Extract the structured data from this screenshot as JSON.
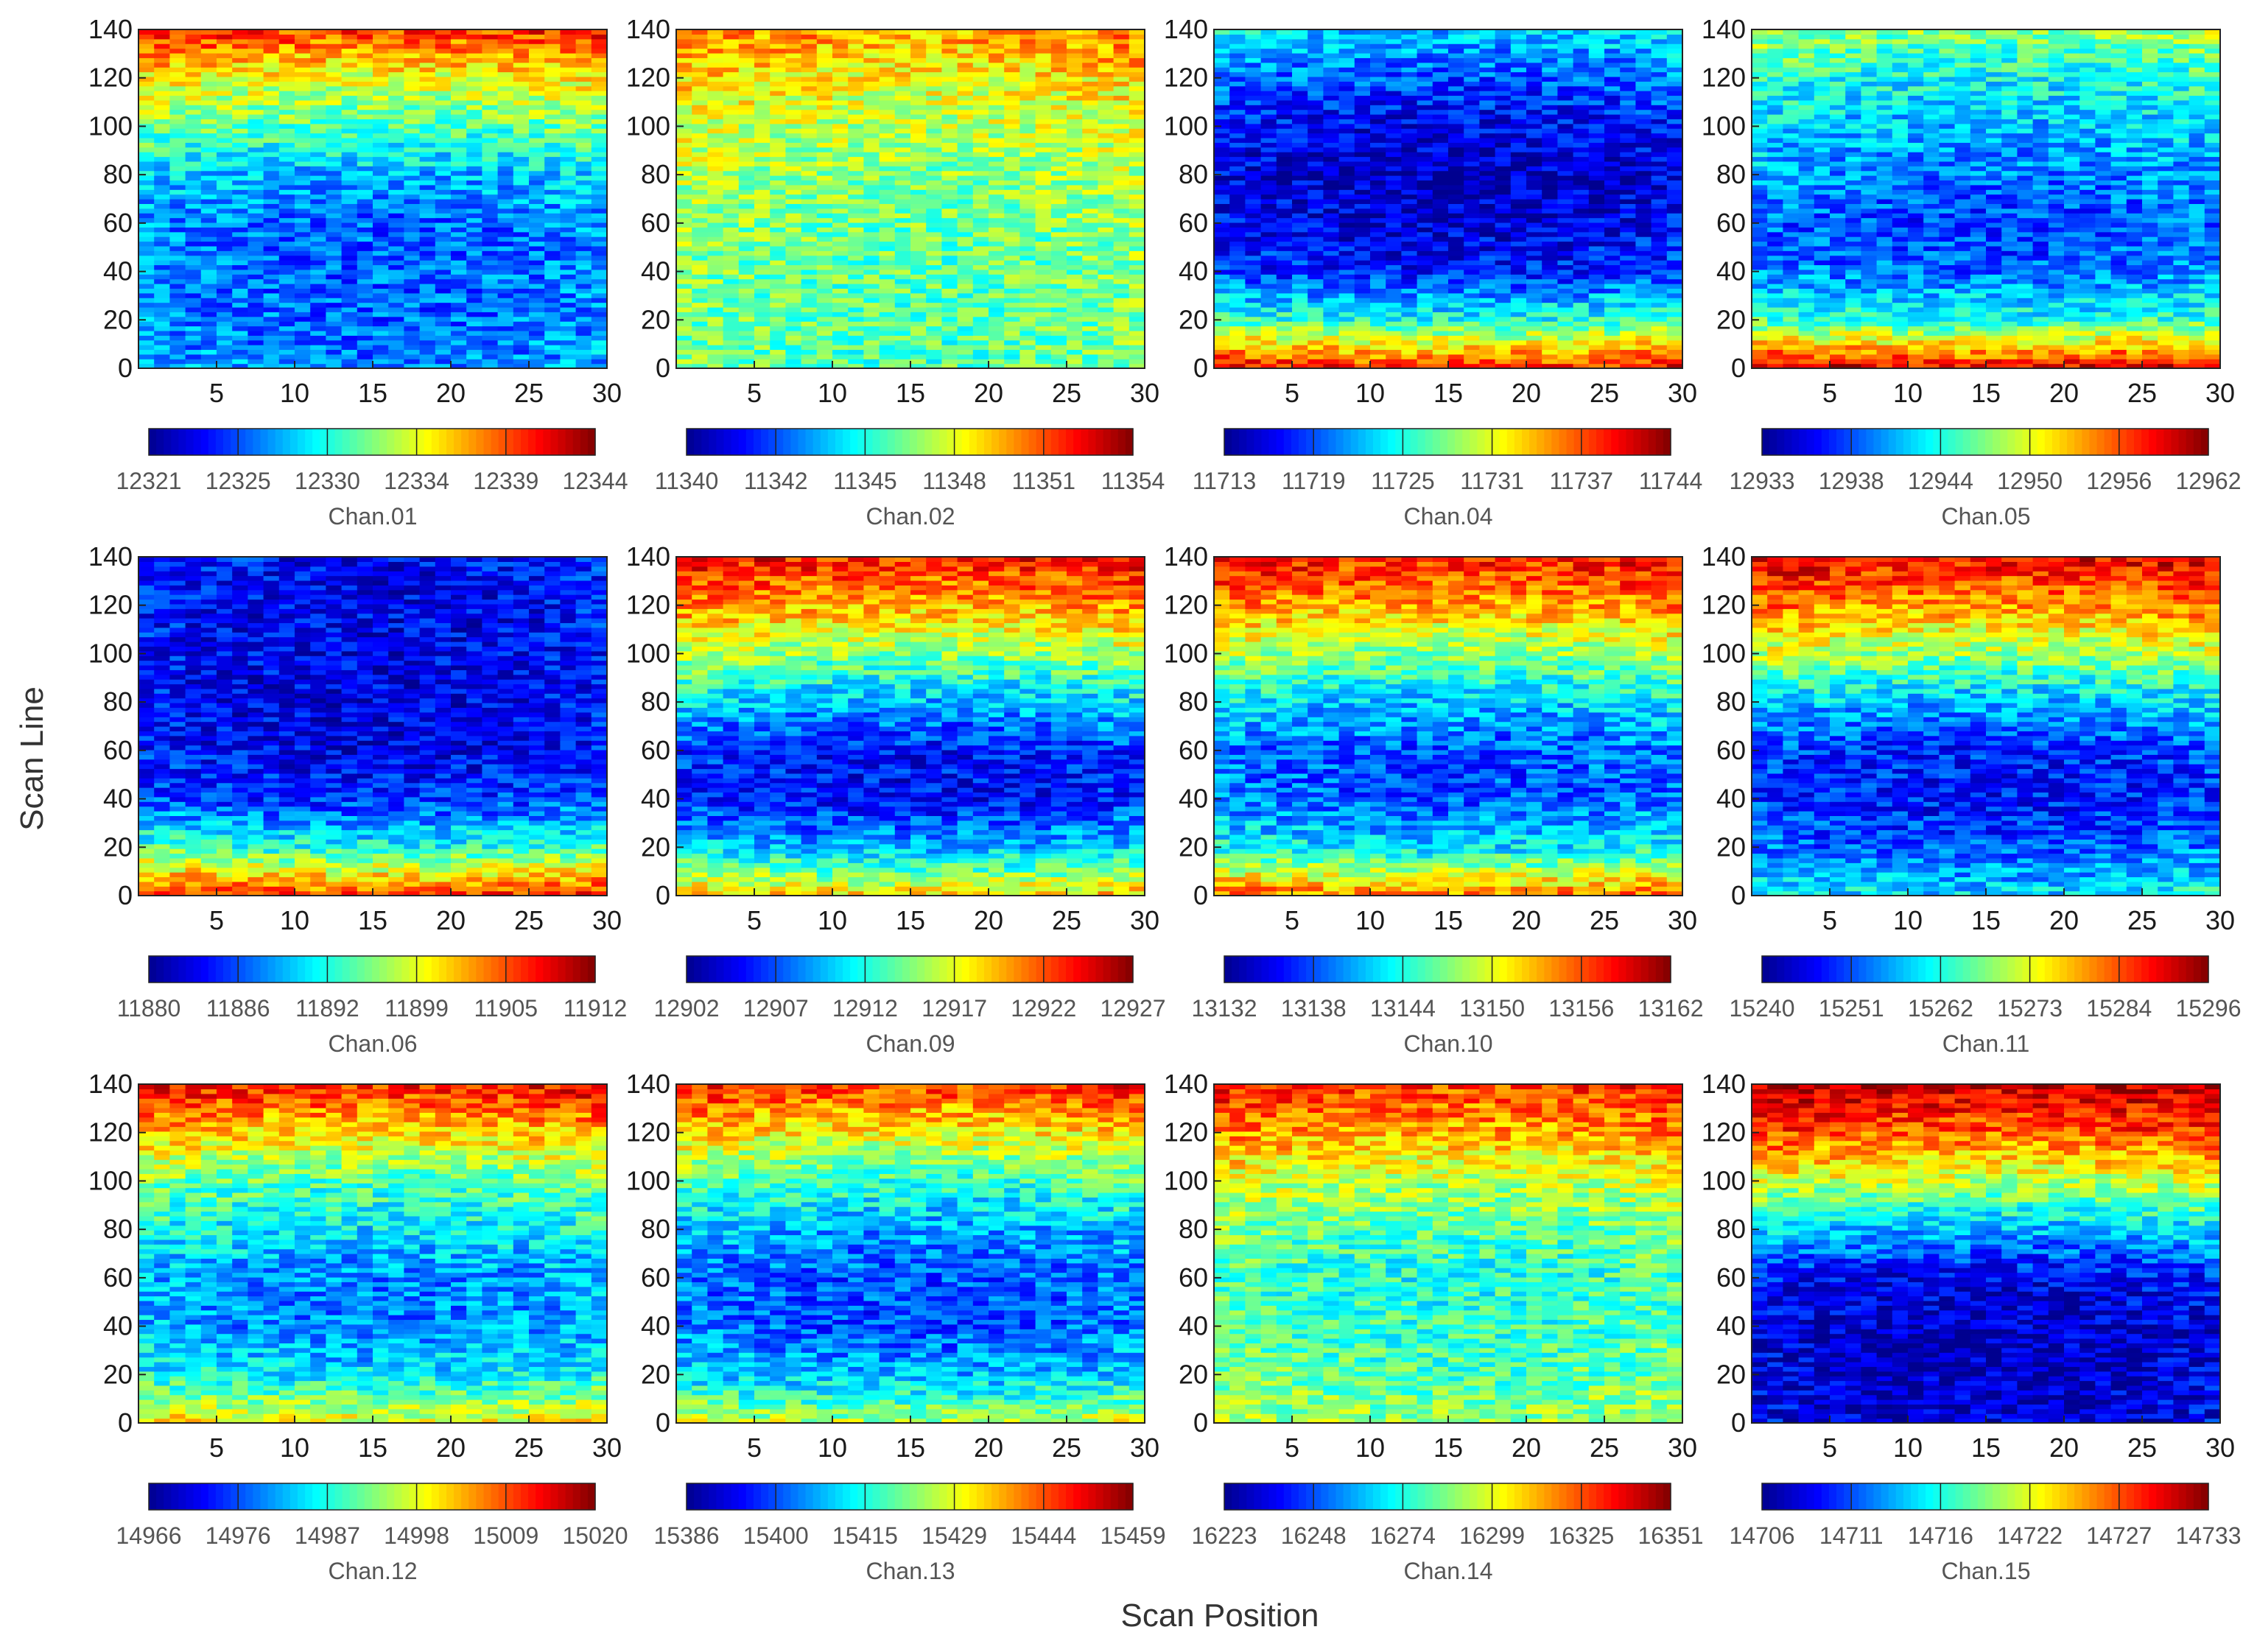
{
  "chart_data": {
    "type": "heatmap",
    "xlabel": "Scan Position",
    "ylabel": "Scan Line",
    "xlim": [
      0,
      30
    ],
    "ylim": [
      0,
      140
    ],
    "x_ticks": [
      "5",
      "10",
      "15",
      "20",
      "25",
      "30"
    ],
    "y_ticks": [
      "0",
      "20",
      "40",
      "60",
      "80",
      "100",
      "120",
      "140"
    ],
    "colormap": [
      "#00008f",
      "#0000ff",
      "#0080ff",
      "#00ffff",
      "#80ff80",
      "#ffff00",
      "#ff8000",
      "#ff0000",
      "#800000"
    ],
    "panels": [
      {
        "channel": "Chan.01",
        "colorbar_ticks": [
          "12321",
          "12325",
          "12330",
          "12334",
          "12339",
          "12344"
        ],
        "pattern": [
          0.82,
          0.6,
          0.45,
          0.3,
          0.22,
          0.22,
          0.22,
          0.25
        ]
      },
      {
        "channel": "Chan.02",
        "colorbar_ticks": [
          "11340",
          "11342",
          "11345",
          "11348",
          "11351",
          "11354"
        ],
        "pattern": [
          0.72,
          0.62,
          0.55,
          0.5,
          0.48,
          0.46,
          0.45,
          0.45
        ]
      },
      {
        "channel": "Chan.04",
        "colorbar_ticks": [
          "11713",
          "11719",
          "11725",
          "11731",
          "11737",
          "11744"
        ],
        "pattern": [
          0.32,
          0.2,
          0.1,
          0.05,
          0.08,
          0.14,
          0.4,
          0.85
        ]
      },
      {
        "channel": "Chan.05",
        "colorbar_ticks": [
          "12933",
          "12938",
          "12944",
          "12950",
          "12956",
          "12962"
        ],
        "pattern": [
          0.5,
          0.38,
          0.3,
          0.24,
          0.18,
          0.22,
          0.4,
          0.9
        ]
      },
      {
        "channel": "Chan.06",
        "colorbar_ticks": [
          "11880",
          "11886",
          "11892",
          "11899",
          "11905",
          "11912"
        ],
        "pattern": [
          0.12,
          0.1,
          0.1,
          0.09,
          0.1,
          0.16,
          0.4,
          0.82
        ]
      },
      {
        "channel": "Chan.09",
        "colorbar_ticks": [
          "12902",
          "12907",
          "12912",
          "12917",
          "12922",
          "12927"
        ],
        "pattern": [
          0.85,
          0.7,
          0.5,
          0.3,
          0.13,
          0.12,
          0.3,
          0.65
        ]
      },
      {
        "channel": "Chan.10",
        "colorbar_ticks": [
          "13132",
          "13138",
          "13144",
          "13150",
          "13156",
          "13162"
        ],
        "pattern": [
          0.85,
          0.7,
          0.5,
          0.32,
          0.2,
          0.2,
          0.35,
          0.75
        ]
      },
      {
        "channel": "Chan.11",
        "colorbar_ticks": [
          "15240",
          "15251",
          "15262",
          "15273",
          "15284",
          "15296"
        ],
        "pattern": [
          0.88,
          0.72,
          0.52,
          0.3,
          0.15,
          0.13,
          0.2,
          0.35
        ]
      },
      {
        "channel": "Chan.12",
        "colorbar_ticks": [
          "14966",
          "14976",
          "14987",
          "14998",
          "15009",
          "15020"
        ],
        "pattern": [
          0.85,
          0.65,
          0.45,
          0.35,
          0.25,
          0.25,
          0.35,
          0.62
        ]
      },
      {
        "channel": "Chan.13",
        "colorbar_ticks": [
          "15386",
          "15400",
          "15415",
          "15429",
          "15444",
          "15459"
        ],
        "pattern": [
          0.82,
          0.62,
          0.42,
          0.28,
          0.2,
          0.2,
          0.3,
          0.55
        ]
      },
      {
        "channel": "Chan.14",
        "colorbar_ticks": [
          "16223",
          "16248",
          "16274",
          "16299",
          "16325",
          "16351"
        ],
        "pattern": [
          0.82,
          0.7,
          0.55,
          0.45,
          0.4,
          0.42,
          0.45,
          0.52
        ]
      },
      {
        "channel": "Chan.15",
        "colorbar_ticks": [
          "14706",
          "14711",
          "14716",
          "14722",
          "14727",
          "14733"
        ],
        "pattern": [
          0.92,
          0.78,
          0.55,
          0.3,
          0.1,
          0.05,
          0.05,
          0.07
        ]
      }
    ]
  }
}
